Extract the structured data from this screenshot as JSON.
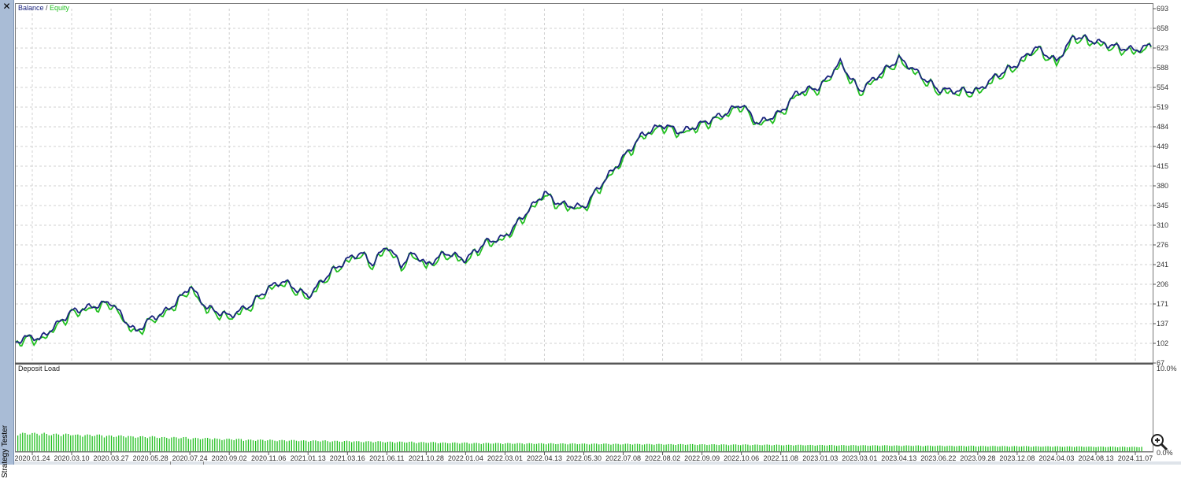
{
  "window": {
    "close_label": "✕",
    "side_label": "Strategy Tester"
  },
  "colors": {
    "balance": "#1a237e",
    "equity": "#22c020",
    "deposit_load": "#22c020",
    "grid": "#d0d0d0"
  },
  "chart_data": [
    {
      "type": "line",
      "title": "",
      "legend": [
        "Balance",
        "Equity"
      ],
      "legend_separator": " / ",
      "legend_placement": "top-left",
      "grid": true,
      "ylim": [
        67,
        693
      ],
      "y_ticks": [
        "693",
        "658",
        "623",
        "588",
        "554",
        "519",
        "484",
        "449",
        "415",
        "380",
        "345",
        "310",
        "276",
        "241",
        "206",
        "171",
        "137",
        "102",
        "67"
      ],
      "x_ticks": [
        "2020.01.24",
        "2020.03.10",
        "2020.03.27",
        "2020.05.28",
        "2020.07.24",
        "2020.09.02",
        "2020.11.06",
        "2021.01.13",
        "2021.03.16",
        "2021.06.11",
        "2021.10.28",
        "2022.01.04",
        "2022.03.01",
        "2022.04.13",
        "2022.05.30",
        "2022.07.08",
        "2022.08.02",
        "2022.09.09",
        "2022.10.06",
        "2022.11.08",
        "2023.01.03",
        "2023.03.01",
        "2023.04.13",
        "2023.06.22",
        "2023.09.28",
        "2023.12.08",
        "2024.04.03",
        "2024.08.13",
        "2024.11.07"
      ],
      "series": [
        {
          "name": "Balance",
          "x": [
            "2020.01.01",
            "2020.01.24",
            "2020.02.01",
            "2020.03.10",
            "2020.03.27",
            "2020.04.20",
            "2020.05.05",
            "2020.05.28",
            "2020.06.15",
            "2020.07.05",
            "2020.07.24",
            "2020.08.10",
            "2020.09.02",
            "2020.10.05",
            "2020.11.06",
            "2020.12.01",
            "2021.01.13",
            "2021.02.15",
            "2021.03.16",
            "2021.04.15",
            "2021.05.10",
            "2021.06.11",
            "2021.08.01",
            "2021.09.15",
            "2021.10.28",
            "2021.12.01",
            "2022.01.04",
            "2022.02.01",
            "2022.03.01",
            "2022.03.20",
            "2022.04.13",
            "2022.05.01",
            "2022.05.30",
            "2022.06.15",
            "2022.07.08",
            "2022.07.20",
            "2022.08.02",
            "2022.08.20",
            "2022.09.09",
            "2022.09.25",
            "2022.10.06",
            "2022.10.20",
            "2022.11.08",
            "2022.12.01",
            "2023.01.03",
            "2023.02.01",
            "2023.03.01",
            "2023.03.25",
            "2023.04.13",
            "2023.05.01",
            "2023.06.22",
            "2023.08.01",
            "2023.09.28",
            "2023.11.01",
            "2023.12.08",
            "2024.02.01",
            "2024.04.03",
            "2024.06.01",
            "2024.08.13",
            "2024.10.01",
            "2024.11.07",
            "2024.12.15"
          ],
          "values": [
            105,
            115,
            108,
            158,
            175,
            140,
            122,
            145,
            155,
            175,
            203,
            165,
            150,
            168,
            200,
            212,
            185,
            225,
            250,
            262,
            242,
            275,
            240,
            262,
            240,
            262,
            250,
            280,
            290,
            325,
            368,
            348,
            342,
            380,
            430,
            470,
            488,
            475,
            490,
            508,
            525,
            490,
            510,
            545,
            555,
            598,
            548,
            580,
            605,
            592,
            550,
            548,
            548,
            575,
            595,
            625,
            600,
            645,
            635,
            625,
            620,
            628
          ]
        },
        {
          "name": "Equity",
          "x": [],
          "values": []
        }
      ]
    },
    {
      "type": "bar",
      "title": "Deposit Load",
      "y_ticks": [
        "10.0%",
        "0.0%"
      ],
      "ylim": [
        0,
        10.0
      ],
      "values": [
        2.2,
        2.1,
        2.0,
        1.9,
        1.8,
        1.7,
        1.6,
        1.5,
        1.4,
        1.35,
        1.3,
        1.25,
        1.2,
        1.15,
        1.1,
        1.05,
        1.0,
        0.98,
        0.96,
        0.94,
        0.92,
        0.9,
        0.88,
        0.86,
        0.84,
        0.82,
        0.8,
        0.78,
        0.76,
        0.74,
        0.72,
        0.7,
        0.68,
        0.66,
        0.64,
        0.62,
        0.6,
        0.58,
        0.56,
        0.54
      ]
    }
  ]
}
